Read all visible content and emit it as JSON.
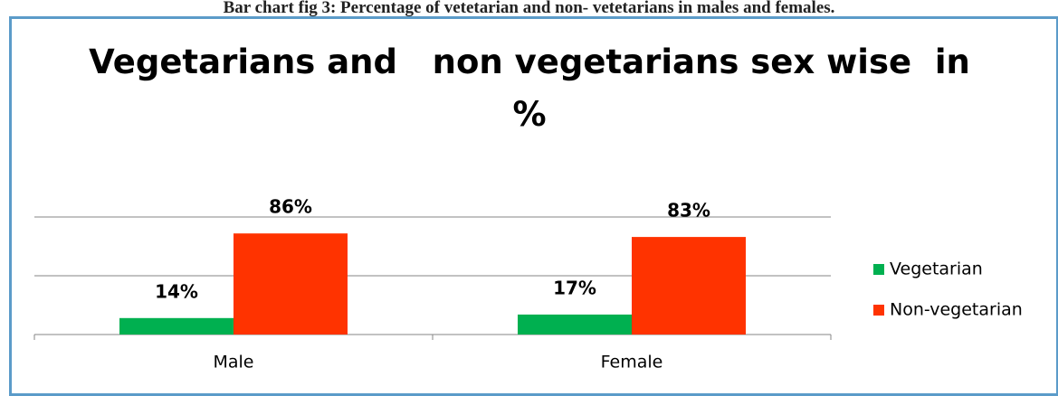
{
  "caption": "Bar chart fig 3: Percentage of vetetarian and non- vetetarians in males and females.",
  "chart_data": {
    "type": "bar",
    "title": "Vegetarians and   non vegetarians sex wise  in\n%",
    "categories": [
      "Male",
      "Female"
    ],
    "series": [
      {
        "name": "Vegetarian",
        "color": "#00b050",
        "values": [
          14,
          17
        ],
        "value_labels": [
          "14%",
          "17%"
        ]
      },
      {
        "name": "Non-vegetarian",
        "color": "#ff3300",
        "values": [
          86,
          83
        ],
        "value_labels": [
          "86%",
          "83%"
        ]
      }
    ],
    "ylim": [
      0,
      100
    ],
    "yticks": [
      0,
      50,
      100
    ],
    "grid": true,
    "legend": "right"
  }
}
